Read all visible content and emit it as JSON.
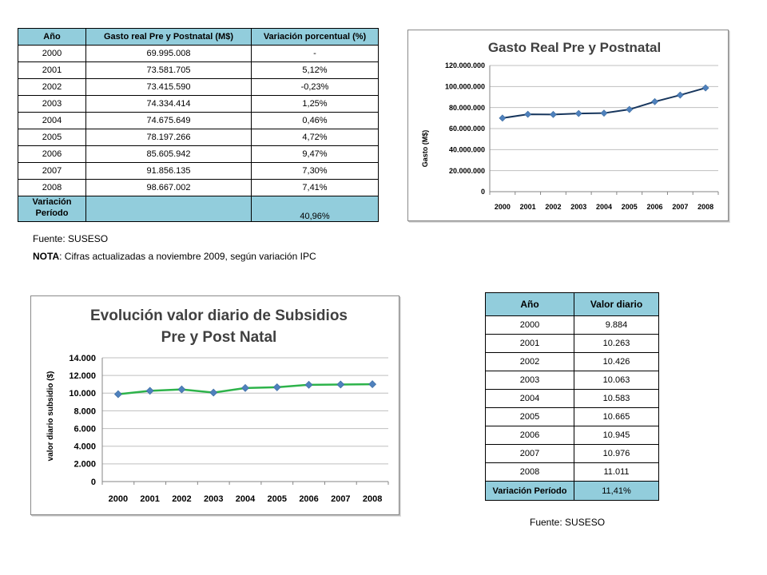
{
  "table1": {
    "headers": [
      "Año",
      "Gasto real Pre y Postnatal (M$)",
      "Variación porcentual (%)"
    ],
    "rows": [
      [
        "2000",
        "69.995.008",
        "-"
      ],
      [
        "2001",
        "73.581.705",
        "5,12%"
      ],
      [
        "2002",
        "73.415.590",
        "-0,23%"
      ],
      [
        "2003",
        "74.334.414",
        "1,25%"
      ],
      [
        "2004",
        "74.675.649",
        "0,46%"
      ],
      [
        "2005",
        "78.197.266",
        "4,72%"
      ],
      [
        "2006",
        "85.605.942",
        "9,47%"
      ],
      [
        "2007",
        "91.856.135",
        "7,30%"
      ],
      [
        "2008",
        "98.667.002",
        "7,41%"
      ]
    ],
    "variation_label": "Variación Período",
    "variation_value": "40,96%"
  },
  "notes": {
    "source1": "Fuente: SUSESO",
    "nota_bold": "NOTA",
    "nota_text": ": Cifras actualizadas a noviembre 2009, según variación IPC",
    "source2": "Fuente: SUSESO"
  },
  "table2": {
    "headers": [
      "Año",
      "Valor diario"
    ],
    "rows": [
      [
        "2000",
        "9.884"
      ],
      [
        "2001",
        "10.263"
      ],
      [
        "2002",
        "10.426"
      ],
      [
        "2003",
        "10.063"
      ],
      [
        "2004",
        "10.583"
      ],
      [
        "2005",
        "10.665"
      ],
      [
        "2006",
        "10.945"
      ],
      [
        "2007",
        "10.976"
      ],
      [
        "2008",
        "11.011"
      ]
    ],
    "variation_label": "Variación Período",
    "variation_value": "11,41%"
  },
  "chart_data": [
    {
      "type": "line",
      "title": "Gasto Real Pre y Postnatal",
      "xlabel": "",
      "ylabel": "Gasto (M$)",
      "x": [
        "2000",
        "2001",
        "2002",
        "2003",
        "2004",
        "2005",
        "2006",
        "2007",
        "2008"
      ],
      "series": [
        {
          "values": [
            69995008,
            73581705,
            73415590,
            74334414,
            74675649,
            78197266,
            85605942,
            91856135,
            98667002
          ],
          "color": "#17365d",
          "marker_color": "#4f81bd"
        }
      ],
      "ylim": [
        0,
        120000000
      ],
      "yticks": [
        0,
        20000000,
        40000000,
        60000000,
        80000000,
        100000000,
        120000000
      ],
      "ytick_labels": [
        "0",
        "20.000.000",
        "40.000.000",
        "60.000.000",
        "80.000.000",
        "100.000.000",
        "120.000.000"
      ],
      "grid": true,
      "legend": "none"
    },
    {
      "type": "line",
      "title": "Evolución valor diario de Subsidios Pre y Post Natal",
      "title_lines": [
        "Evolución valor diario de Subsidios",
        "Pre y Post Natal"
      ],
      "xlabel": "",
      "ylabel": "valor diario subsidio ($)",
      "x": [
        "2000",
        "2001",
        "2002",
        "2003",
        "2004",
        "2005",
        "2006",
        "2007",
        "2008"
      ],
      "series": [
        {
          "values": [
            9884,
            10263,
            10426,
            10063,
            10583,
            10665,
            10945,
            10976,
            11011
          ],
          "color": "#2db34a",
          "marker_color": "#4f81bd"
        }
      ],
      "ylim": [
        0,
        14000
      ],
      "yticks": [
        0,
        2000,
        4000,
        6000,
        8000,
        10000,
        12000,
        14000
      ],
      "ytick_labels": [
        "0",
        "2.000",
        "4.000",
        "6.000",
        "8.000",
        "10.000",
        "12.000",
        "14.000"
      ],
      "grid": true,
      "legend": "none"
    }
  ]
}
